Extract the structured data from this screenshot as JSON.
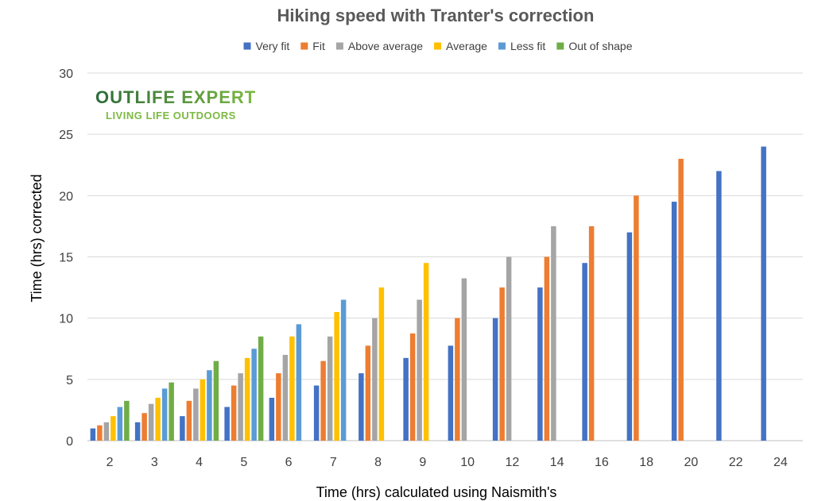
{
  "logo": {
    "main": "OUTLIFE EXPERT",
    "sub": "LIVING LIFE OUTDOORS"
  },
  "chart_data": {
    "type": "bar",
    "title": "Hiking speed with Tranter's correction",
    "xlabel": "Time (hrs) calculated using Naismith's",
    "ylabel": "Time (hrs) corrected",
    "ylim": [
      0,
      30
    ],
    "yticks": [
      0,
      5,
      10,
      15,
      20,
      25,
      30
    ],
    "grid": true,
    "legend_position": "top",
    "categories": [
      "2",
      "3",
      "4",
      "5",
      "6",
      "7",
      "8",
      "9",
      "10",
      "12",
      "14",
      "16",
      "18",
      "20",
      "22",
      "24"
    ],
    "series": [
      {
        "name": "Very fit",
        "color": "#4472C4",
        "values": [
          1,
          1.5,
          2,
          2.75,
          3.5,
          4.5,
          5.5,
          6.75,
          7.75,
          10,
          12.5,
          14.5,
          17,
          19.5,
          22,
          24
        ]
      },
      {
        "name": "Fit",
        "color": "#ED7D31",
        "values": [
          1.25,
          2.25,
          3.25,
          4.5,
          5.5,
          6.5,
          7.75,
          8.75,
          10,
          12.5,
          15,
          17.5,
          20,
          23,
          null,
          null
        ]
      },
      {
        "name": "Above average",
        "color": "#A5A5A5",
        "values": [
          1.5,
          3,
          4.25,
          5.5,
          7,
          8.5,
          10,
          11.5,
          13.25,
          15,
          17.5,
          null,
          null,
          null,
          null,
          null
        ]
      },
      {
        "name": "Average",
        "color": "#FFC000",
        "values": [
          2,
          3.5,
          5,
          6.75,
          8.5,
          10.5,
          12.5,
          14.5,
          null,
          null,
          null,
          null,
          null,
          null,
          null,
          null
        ]
      },
      {
        "name": "Less fit",
        "color": "#5B9BD5",
        "values": [
          2.75,
          4.25,
          5.75,
          7.5,
          9.5,
          11.5,
          null,
          null,
          null,
          null,
          null,
          null,
          null,
          null,
          null,
          null
        ]
      },
      {
        "name": "Out of shape",
        "color": "#70AD47",
        "values": [
          3.25,
          4.75,
          6.5,
          8.5,
          null,
          null,
          null,
          null,
          null,
          null,
          null,
          null,
          null,
          null,
          null,
          null
        ]
      }
    ]
  }
}
